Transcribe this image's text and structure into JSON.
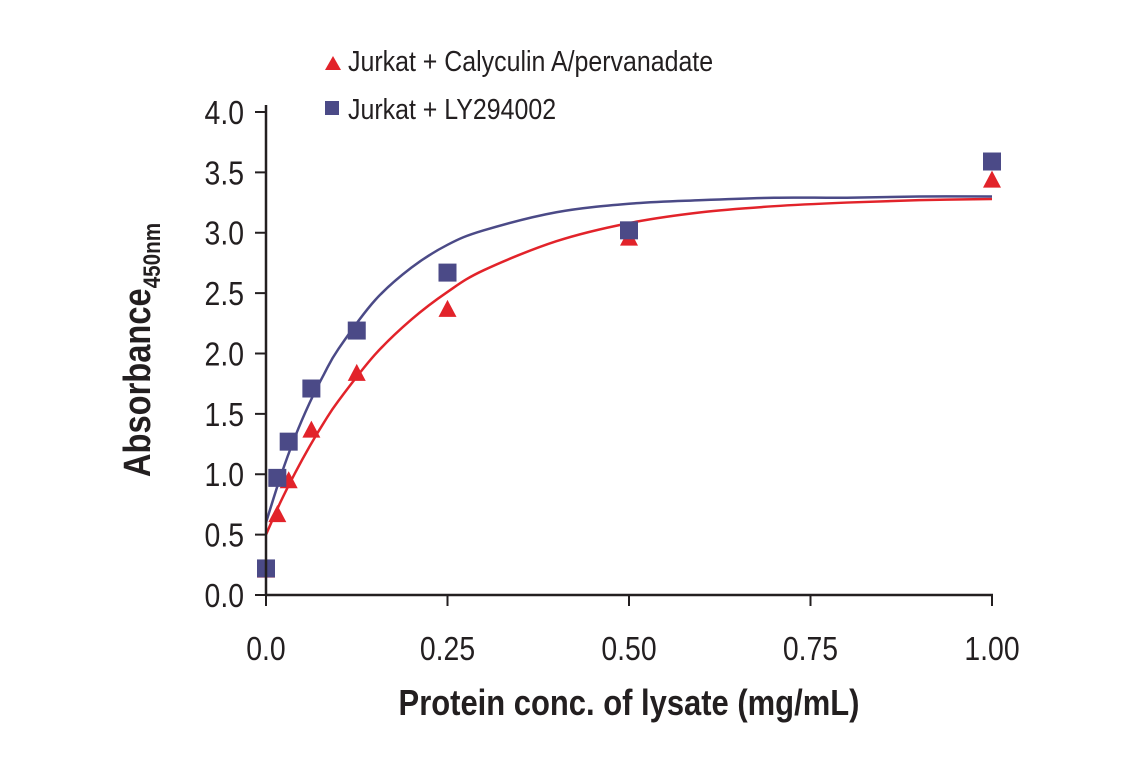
{
  "chart_data": {
    "type": "scatter",
    "title": "",
    "xlabel": "Protein conc. of lysate (mg/mL)",
    "ylabel": "Absorbance",
    "ylabel_subscript": "450nm",
    "xlim": [
      0,
      1.0
    ],
    "ylim": [
      0,
      4.0
    ],
    "x_ticks": [
      "0.0",
      "0.25",
      "0.50",
      "0.75",
      "1.00"
    ],
    "x_tick_values": [
      0,
      0.25,
      0.5,
      0.75,
      1.0
    ],
    "y_ticks": [
      "0.0",
      "0.5",
      "1.0",
      "1.5",
      "2.0",
      "2.5",
      "3.0",
      "3.5",
      "4.0"
    ],
    "y_tick_values": [
      0,
      0.5,
      1.0,
      1.5,
      2.0,
      2.5,
      3.0,
      3.5,
      4.0
    ],
    "grid": false,
    "legend_placement": "top",
    "series": [
      {
        "name": "Jurkat + Calyculin A/pervanadate",
        "marker": "triangle",
        "color": "#e2232a",
        "x": [
          0,
          0.0156,
          0.03125,
          0.0625,
          0.125,
          0.25,
          0.5,
          1.0
        ],
        "y": [
          0.21,
          0.67,
          0.95,
          1.37,
          1.84,
          2.37,
          2.96,
          3.44
        ],
        "fit_curve": {
          "x": [
            0,
            0.02,
            0.04,
            0.06,
            0.08,
            0.1,
            0.15,
            0.2,
            0.25,
            0.3,
            0.4,
            0.5,
            0.6,
            0.7,
            0.8,
            0.9,
            1.0
          ],
          "y": [
            0.5,
            0.77,
            1.01,
            1.23,
            1.43,
            1.61,
            1.99,
            2.28,
            2.51,
            2.69,
            2.93,
            3.08,
            3.17,
            3.22,
            3.25,
            3.27,
            3.28
          ]
        }
      },
      {
        "name": "Jurkat + LY294002",
        "marker": "square",
        "color": "#4b4a87",
        "x": [
          0,
          0.0156,
          0.03125,
          0.0625,
          0.125,
          0.25,
          0.5,
          1.0
        ],
        "y": [
          0.22,
          0.97,
          1.27,
          1.71,
          2.19,
          2.67,
          3.02,
          3.59
        ],
        "fit_curve": {
          "x": [
            0,
            0.02,
            0.04,
            0.06,
            0.08,
            0.1,
            0.15,
            0.2,
            0.25,
            0.3,
            0.4,
            0.5,
            0.6,
            0.7,
            0.8,
            0.9,
            1.0
          ],
          "y": [
            0.6,
            0.98,
            1.31,
            1.59,
            1.83,
            2.04,
            2.44,
            2.71,
            2.9,
            3.02,
            3.17,
            3.24,
            3.27,
            3.29,
            3.29,
            3.3,
            3.3
          ]
        }
      }
    ]
  }
}
